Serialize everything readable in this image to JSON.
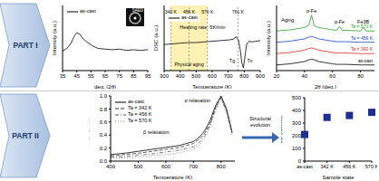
{
  "sections": [
    "PART I",
    "PART II"
  ],
  "arrow_label": "Structural evolution",
  "chart_data": [
    {
      "type": "line",
      "xlabel": "deg. (2θ)",
      "ylabel": "Intensity (a.u.)",
      "x": [
        35,
        38,
        41,
        43,
        45,
        47,
        49,
        52,
        56,
        60,
        65,
        70,
        75,
        80,
        85,
        90,
        95
      ],
      "series": [
        {
          "name": "as-cast",
          "color": "#000000",
          "line_style": "solid",
          "values": [
            0.3,
            0.34,
            0.42,
            0.52,
            0.58,
            0.56,
            0.5,
            0.44,
            0.38,
            0.34,
            0.33,
            0.32,
            0.33,
            0.31,
            0.32,
            0.31,
            0.32
          ]
        }
      ],
      "xlim": [
        35,
        95
      ],
      "xticks": [
        35,
        45,
        55,
        65,
        75,
        85,
        95
      ],
      "ylim": [
        0,
        1
      ],
      "tick_labels": "x",
      "legend": "upper left",
      "inset": "SAED"
    },
    {
      "type": "line",
      "xlabel": "Temperature (K)",
      "ylabel": "DSC (a.u.)",
      "x": [
        300,
        350,
        400,
        450,
        500,
        550,
        600,
        650,
        700,
        730,
        750,
        765,
        775,
        785,
        795,
        805,
        815,
        830,
        850,
        870,
        900
      ],
      "series": [
        {
          "name": "as-cast",
          "color": "#000000",
          "line_style": "solid",
          "values": [
            0.4,
            0.41,
            0.42,
            0.43,
            0.43,
            0.44,
            0.45,
            0.46,
            0.47,
            0.48,
            0.52,
            0.46,
            0.32,
            0.12,
            0.04,
            0.22,
            0.4,
            0.45,
            0.44,
            0.45,
            0.46
          ]
        }
      ],
      "xlim": [
        300,
        900
      ],
      "xticks": [
        300,
        400,
        500,
        600,
        700,
        800,
        900
      ],
      "ylim": [
        0,
        1
      ],
      "tick_labels": "x",
      "legend": "upper left",
      "vlines": [
        {
          "x": 342,
          "label": "342 K"
        },
        {
          "x": 456,
          "label": "456 K"
        },
        {
          "x": 570,
          "label": "570 K"
        },
        {
          "x": 761,
          "label": "761 K"
        }
      ],
      "regions": [
        {
          "x1": 342,
          "x2": 570,
          "label": "Physical aging"
        }
      ],
      "annotations": [
        {
          "x": 540,
          "y": 0.66,
          "label": "Heating rate: 5K/min"
        },
        {
          "x": 725,
          "y": 0.15,
          "label": "Tg"
        },
        {
          "x": 835,
          "y": 0.15,
          "label": "Tx"
        }
      ]
    },
    {
      "type": "line",
      "xlabel": "2θ (deg.)",
      "ylabel": "Intensity (a.u.)",
      "x": [
        20,
        30,
        40,
        43,
        45,
        47,
        50,
        60,
        63,
        65,
        67,
        70,
        80,
        82,
        84,
        90
      ],
      "series": [
        {
          "name": "as-cast",
          "color": "#000000",
          "line_style": "solid",
          "values": [
            0.1,
            0.12,
            0.16,
            0.19,
            0.2,
            0.19,
            0.16,
            0.12,
            0.11,
            0.11,
            0.11,
            0.11,
            0.1,
            0.1,
            0.1,
            0.1
          ]
        },
        {
          "name": "Ta = 342 K",
          "color": "#d62728",
          "line_style": "solid",
          "values": [
            0.3,
            0.32,
            0.36,
            0.39,
            0.4,
            0.39,
            0.36,
            0.32,
            0.31,
            0.31,
            0.31,
            0.31,
            0.3,
            0.3,
            0.3,
            0.3
          ]
        },
        {
          "name": "Ta = 456 K",
          "color": "#1f3fbf",
          "line_style": "solid",
          "values": [
            0.5,
            0.52,
            0.56,
            0.59,
            0.6,
            0.59,
            0.56,
            0.52,
            0.51,
            0.51,
            0.51,
            0.51,
            0.5,
            0.5,
            0.5,
            0.5
          ]
        },
        {
          "name": "Ta = 570 K",
          "color": "#2ca02c",
          "line_style": "solid",
          "values": [
            0.7,
            0.72,
            0.76,
            0.8,
            0.98,
            0.79,
            0.76,
            0.72,
            0.71,
            0.78,
            0.71,
            0.71,
            0.7,
            0.76,
            0.7,
            0.7
          ]
        }
      ],
      "xlim": [
        20,
        90
      ],
      "xticks": [
        20,
        40,
        60,
        80
      ],
      "ylim": [
        0,
        1.15
      ],
      "tick_labels": "x",
      "legend": "right",
      "annotations": [
        {
          "x": 45,
          "y": 1.06,
          "label": "α-Fe"
        },
        {
          "x": 65,
          "y": 0.86,
          "label": "α-Fe"
        },
        {
          "x": 82,
          "y": 0.86,
          "label": "Fe3B"
        },
        {
          "x": 28,
          "y": 0.9,
          "label": "Aging"
        }
      ]
    },
    {
      "type": "line",
      "xlabel": "Temperature (K)",
      "ylabel": "E''/E''max",
      "x": [
        400,
        450,
        500,
        550,
        600,
        650,
        700,
        720,
        740,
        760,
        780,
        800,
        820,
        840
      ],
      "series": [
        {
          "name": "as-cast",
          "color": "#000000",
          "line_style": "solid",
          "values": [
            0.1,
            0.12,
            0.15,
            0.18,
            0.21,
            0.24,
            0.3,
            0.36,
            0.46,
            0.62,
            0.85,
            1.0,
            0.8,
            0.45
          ]
        },
        {
          "name": "Ta = 342 K",
          "color": "#333333",
          "line_style": "dashed",
          "values": [
            0.08,
            0.1,
            0.12,
            0.15,
            0.18,
            0.21,
            0.27,
            0.33,
            0.42,
            0.58,
            0.82,
            0.98,
            0.78,
            0.43
          ]
        },
        {
          "name": "Ta = 456 K",
          "color": "#555555",
          "line_style": "dashdot",
          "values": [
            0.06,
            0.07,
            0.09,
            0.11,
            0.14,
            0.17,
            0.22,
            0.28,
            0.38,
            0.55,
            0.8,
            0.97,
            0.76,
            0.42
          ]
        },
        {
          "name": "Ta = 570 K",
          "color": "#777777",
          "line_style": "dotted",
          "values": [
            0.04,
            0.05,
            0.06,
            0.08,
            0.1,
            0.13,
            0.18,
            0.24,
            0.34,
            0.52,
            0.78,
            0.96,
            0.75,
            0.4
          ]
        }
      ],
      "xlim": [
        400,
        850
      ],
      "xticks": [
        400,
        500,
        600,
        700,
        800
      ],
      "ylim": [
        0,
        1
      ],
      "yticks": [
        {
          "value": 0,
          "label": "0.0"
        },
        0.2,
        0.4,
        0.6,
        0.8,
        {
          "value": 1,
          "label": "1.0"
        }
      ],
      "legend": "upper left",
      "annotations": [
        {
          "x": 715,
          "y": 0.93,
          "label": "α relaxation"
        },
        {
          "x": 565,
          "y": 0.45,
          "label": "β relaxation"
        }
      ]
    },
    {
      "type": "scatter",
      "xlabel": "Sample state",
      "ylabel": "Eβ (kJ/mol)",
      "categories": [
        "as-cast",
        "342 K",
        "456 K",
        "570 K"
      ],
      "values": [
        210,
        345,
        360,
        385
      ],
      "color": "#1f2f8f",
      "marker": "square",
      "ylim": [
        0,
        500
      ],
      "yticks": [
        0,
        100,
        200,
        300,
        400,
        500
      ]
    }
  ]
}
